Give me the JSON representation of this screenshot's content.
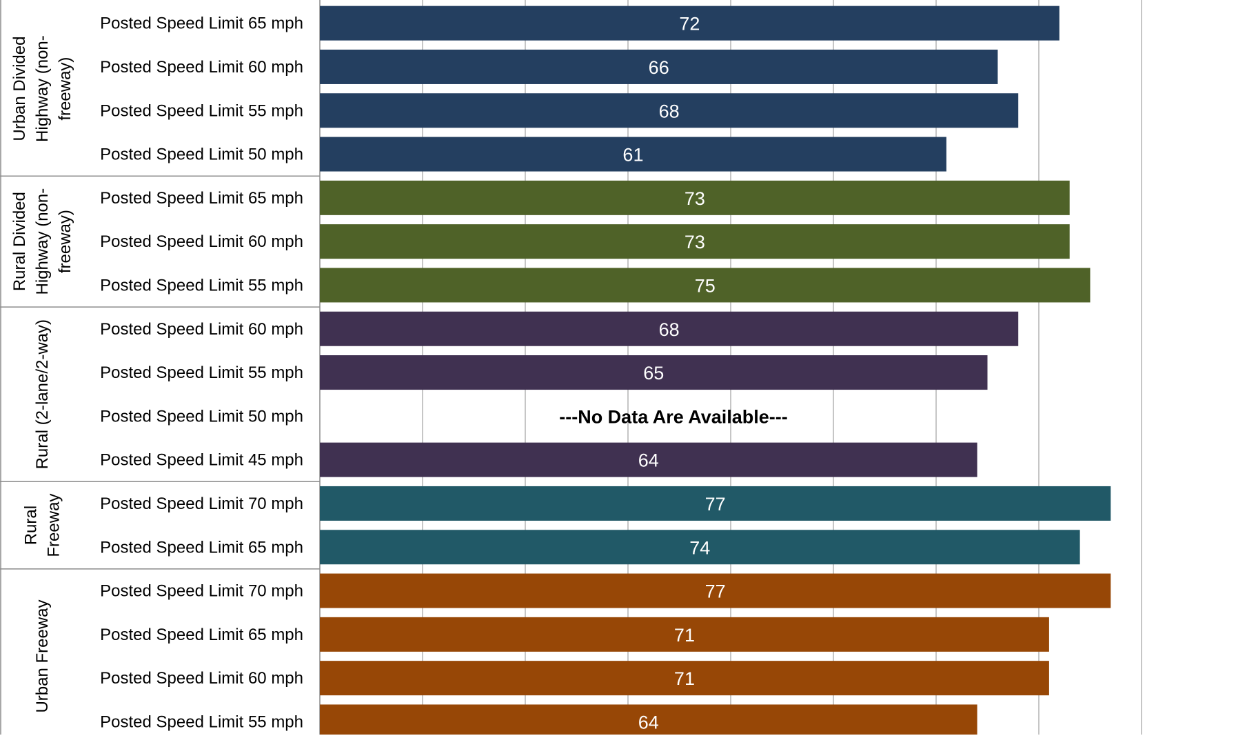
{
  "chart_data": {
    "type": "bar",
    "orientation": "horizontal",
    "xlim": [
      0,
      80
    ],
    "grid": true,
    "no_data_text": "---No Data Are Available---",
    "groups": [
      {
        "label_lines": [
          "Urban Divided",
          "Highway (non-",
          "freeway)"
        ],
        "color": "#243F60",
        "rows": [
          {
            "label": "Posted Speed Limit 65 mph",
            "value": 72
          },
          {
            "label": "Posted Speed Limit 60 mph",
            "value": 66
          },
          {
            "label": "Posted Speed Limit 55 mph",
            "value": 68
          },
          {
            "label": "Posted Speed Limit 50 mph",
            "value": 61
          }
        ]
      },
      {
        "label_lines": [
          "Rural Divided",
          "Highway (non-",
          "freeway)"
        ],
        "color": "#4F6228",
        "rows": [
          {
            "label": "Posted Speed Limit 65 mph",
            "value": 73
          },
          {
            "label": "Posted Speed Limit 60 mph",
            "value": 73
          },
          {
            "label": "Posted Speed Limit 55 mph",
            "value": 75
          }
        ]
      },
      {
        "label_lines": [
          "Rural (2-lane/2-way)"
        ],
        "color": "#403151",
        "rows": [
          {
            "label": "Posted Speed Limit 60 mph",
            "value": 68
          },
          {
            "label": "Posted Speed Limit 55 mph",
            "value": 65
          },
          {
            "label": "Posted Speed Limit 50 mph",
            "value": null
          },
          {
            "label": "Posted Speed Limit 45 mph",
            "value": 64
          }
        ]
      },
      {
        "label_lines": [
          "Rural",
          "Freeway"
        ],
        "color": "#215967",
        "rows": [
          {
            "label": "Posted Speed Limit 70 mph",
            "value": 77
          },
          {
            "label": "Posted Speed Limit 65 mph",
            "value": 74
          }
        ]
      },
      {
        "label_lines": [
          "Urban Freeway"
        ],
        "color": "#974706",
        "rows": [
          {
            "label": "Posted Speed Limit 70 mph",
            "value": 77
          },
          {
            "label": "Posted Speed Limit 65 mph",
            "value": 71
          },
          {
            "label": "Posted Speed Limit 60 mph",
            "value": 71
          },
          {
            "label": "Posted Speed Limit 55 mph",
            "value": 64
          }
        ]
      }
    ]
  }
}
